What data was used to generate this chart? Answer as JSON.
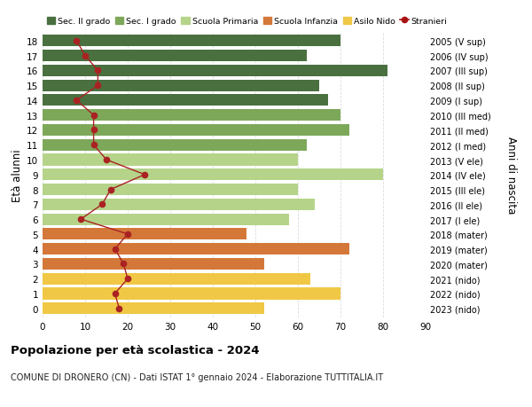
{
  "ages": [
    18,
    17,
    16,
    15,
    14,
    13,
    12,
    11,
    10,
    9,
    8,
    7,
    6,
    5,
    4,
    3,
    2,
    1,
    0
  ],
  "right_labels": [
    "2005 (V sup)",
    "2006 (IV sup)",
    "2007 (III sup)",
    "2008 (II sup)",
    "2009 (I sup)",
    "2010 (III med)",
    "2011 (II med)",
    "2012 (I med)",
    "2013 (V ele)",
    "2014 (IV ele)",
    "2015 (III ele)",
    "2016 (II ele)",
    "2017 (I ele)",
    "2018 (mater)",
    "2019 (mater)",
    "2020 (mater)",
    "2021 (nido)",
    "2022 (nido)",
    "2023 (nido)"
  ],
  "bar_values": [
    70,
    62,
    81,
    65,
    67,
    70,
    72,
    62,
    60,
    80,
    60,
    64,
    58,
    48,
    72,
    52,
    63,
    70,
    52
  ],
  "bar_colors": [
    "#4a7040",
    "#4a7040",
    "#4a7040",
    "#4a7040",
    "#4a7040",
    "#7da85a",
    "#7da85a",
    "#7da85a",
    "#b5d48a",
    "#b5d48a",
    "#b5d48a",
    "#b5d48a",
    "#b5d48a",
    "#d4783a",
    "#d4783a",
    "#d4783a",
    "#f0c845",
    "#f0c845",
    "#f0c845"
  ],
  "stranieri_values": [
    8,
    10,
    13,
    13,
    8,
    12,
    12,
    12,
    15,
    24,
    16,
    14,
    9,
    20,
    17,
    19,
    20,
    17,
    18
  ],
  "legend_labels": [
    "Sec. II grado",
    "Sec. I grado",
    "Scuola Primaria",
    "Scuola Infanzia",
    "Asilo Nido",
    "Stranieri"
  ],
  "legend_colors": [
    "#4a7040",
    "#7da85a",
    "#b5d48a",
    "#d4783a",
    "#f0c845",
    "#aa1111"
  ],
  "ylabel": "Età alunni",
  "right_ylabel": "Anni di nascita",
  "title": "Popolazione per età scolastica - 2024",
  "subtitle": "COMUNE DI DRONERO (CN) - Dati ISTAT 1° gennaio 2024 - Elaborazione TUTTITALIA.IT",
  "xlim": [
    0,
    90
  ],
  "xticks": [
    0,
    10,
    20,
    30,
    40,
    50,
    60,
    70,
    80,
    90
  ],
  "background_color": "#ffffff",
  "grid_color": "#dddddd"
}
